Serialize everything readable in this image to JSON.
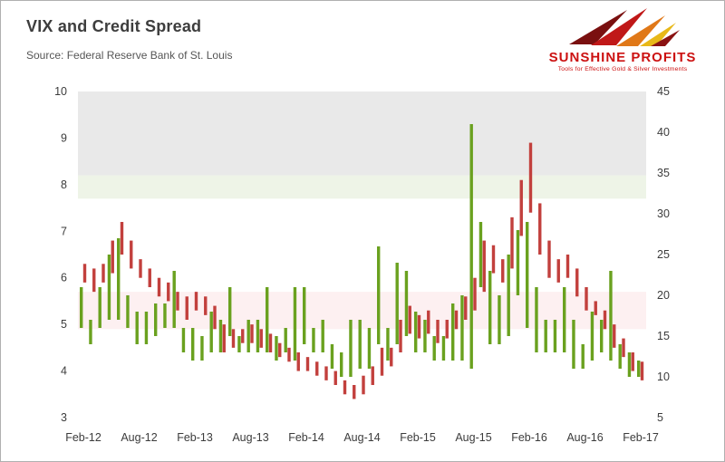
{
  "header": {
    "title": "VIX and Credit Spread",
    "source": "Source: Federal Reserve Bank of St. Louis"
  },
  "logo": {
    "name": "SUNSHINE PROFITS",
    "tagline": "Tools for Effective Gold & Silver Investments"
  },
  "chart_data": {
    "type": "bar",
    "subtype": "high-low range bars, dual axis",
    "title": "VIX and Credit Spread",
    "xlabel": "",
    "ylabel_left": "",
    "ylabel_right": "",
    "left_axis": {
      "min": 3,
      "max": 10,
      "ticks": [
        3,
        4,
        5,
        6,
        7,
        8,
        9,
        10
      ]
    },
    "right_axis": {
      "min": 5,
      "max": 45,
      "ticks": [
        5,
        10,
        15,
        20,
        25,
        30,
        35,
        40,
        45
      ]
    },
    "x_ticks": [
      {
        "label": "Feb-12",
        "month": 0
      },
      {
        "label": "Aug-12",
        "month": 6
      },
      {
        "label": "Feb-13",
        "month": 12
      },
      {
        "label": "Aug-13",
        "month": 18
      },
      {
        "label": "Feb-14",
        "month": 24
      },
      {
        "label": "Aug-14",
        "month": 30
      },
      {
        "label": "Feb-15",
        "month": 36
      },
      {
        "label": "Aug-15",
        "month": 42
      },
      {
        "label": "Feb-16",
        "month": 48
      },
      {
        "label": "Aug-16",
        "month": 54
      },
      {
        "label": "Feb-17",
        "month": 60
      }
    ],
    "n_months": 61,
    "bands": [
      {
        "axis": "left",
        "from": 8.2,
        "to": 10.0,
        "color": "#e9e9e9"
      },
      {
        "axis": "left",
        "from": 7.7,
        "to": 8.2,
        "color": "#eef4e7"
      },
      {
        "axis": "left",
        "from": 4.9,
        "to": 5.7,
        "color": "#fdf0f1"
      }
    ],
    "series": [
      {
        "name": "VIX (right axis)",
        "color": "#6aa11f",
        "axis": "right",
        "ranges": [
          [
            16,
            21
          ],
          [
            14,
            17
          ],
          [
            16,
            21
          ],
          [
            17,
            25
          ],
          [
            17,
            27
          ],
          [
            16,
            20
          ],
          [
            14,
            18
          ],
          [
            14,
            18
          ],
          [
            15,
            19
          ],
          [
            16,
            19
          ],
          [
            16,
            23
          ],
          [
            13,
            16
          ],
          [
            12,
            16
          ],
          [
            12,
            15
          ],
          [
            13,
            18
          ],
          [
            13,
            17
          ],
          [
            15,
            21
          ],
          [
            13,
            15
          ],
          [
            13,
            17
          ],
          [
            13,
            17
          ],
          [
            13,
            21
          ],
          [
            12,
            15
          ],
          [
            13,
            16
          ],
          [
            12,
            21
          ],
          [
            14,
            21
          ],
          [
            13,
            16
          ],
          [
            13,
            17
          ],
          [
            11,
            14
          ],
          [
            10,
            13
          ],
          [
            10,
            17
          ],
          [
            11,
            17
          ],
          [
            11,
            16
          ],
          [
            14,
            26
          ],
          [
            12,
            16
          ],
          [
            14,
            24
          ],
          [
            15,
            23
          ],
          [
            13,
            18
          ],
          [
            13,
            17
          ],
          [
            12,
            15
          ],
          [
            12,
            15
          ],
          [
            12,
            19
          ],
          [
            12,
            20
          ],
          [
            11,
            41
          ],
          [
            21,
            29
          ],
          [
            14,
            23
          ],
          [
            14,
            20
          ],
          [
            15,
            25
          ],
          [
            20,
            28
          ],
          [
            16,
            29
          ],
          [
            13,
            21
          ],
          [
            13,
            17
          ],
          [
            13,
            17
          ],
          [
            13,
            21
          ],
          [
            11,
            17
          ],
          [
            11,
            14
          ],
          [
            12,
            18
          ],
          [
            13,
            17
          ],
          [
            12,
            23
          ],
          [
            11,
            14
          ],
          [
            10,
            13
          ],
          [
            10,
            12
          ]
        ]
      },
      {
        "name": "Credit Spread (left axis)",
        "color": "#c2403d",
        "axis": "left",
        "ranges": [
          [
            5.9,
            6.3
          ],
          [
            5.7,
            6.2
          ],
          [
            5.9,
            6.3
          ],
          [
            6.1,
            6.8
          ],
          [
            6.5,
            7.2
          ],
          [
            6.2,
            6.8
          ],
          [
            6.0,
            6.4
          ],
          [
            5.8,
            6.2
          ],
          [
            5.6,
            6.0
          ],
          [
            5.5,
            5.9
          ],
          [
            5.3,
            5.7
          ],
          [
            5.1,
            5.6
          ],
          [
            5.3,
            5.7
          ],
          [
            5.2,
            5.6
          ],
          [
            4.9,
            5.4
          ],
          [
            4.4,
            5.0
          ],
          [
            4.5,
            4.9
          ],
          [
            4.6,
            4.9
          ],
          [
            4.6,
            5.0
          ],
          [
            4.5,
            4.9
          ],
          [
            4.4,
            4.8
          ],
          [
            4.3,
            4.6
          ],
          [
            4.2,
            4.5
          ],
          [
            4.0,
            4.4
          ],
          [
            4.0,
            4.3
          ],
          [
            3.9,
            4.2
          ],
          [
            3.8,
            4.1
          ],
          [
            3.7,
            4.0
          ],
          [
            3.5,
            3.8
          ],
          [
            3.4,
            3.7
          ],
          [
            3.5,
            3.9
          ],
          [
            3.7,
            4.1
          ],
          [
            3.9,
            4.5
          ],
          [
            4.1,
            4.5
          ],
          [
            4.4,
            5.1
          ],
          [
            4.8,
            5.4
          ],
          [
            4.7,
            5.2
          ],
          [
            4.8,
            5.3
          ],
          [
            4.6,
            5.1
          ],
          [
            4.7,
            5.1
          ],
          [
            4.9,
            5.3
          ],
          [
            5.1,
            5.6
          ],
          [
            5.3,
            6.0
          ],
          [
            5.7,
            6.8
          ],
          [
            6.1,
            6.7
          ],
          [
            5.9,
            6.4
          ],
          [
            6.2,
            7.3
          ],
          [
            6.9,
            8.1
          ],
          [
            7.4,
            8.9
          ],
          [
            6.5,
            7.6
          ],
          [
            6.0,
            6.8
          ],
          [
            5.9,
            6.4
          ],
          [
            6.0,
            6.5
          ],
          [
            5.6,
            6.2
          ],
          [
            5.3,
            5.8
          ],
          [
            5.2,
            5.5
          ],
          [
            4.9,
            5.3
          ],
          [
            4.5,
            5.0
          ],
          [
            4.3,
            4.7
          ],
          [
            4.0,
            4.4
          ],
          [
            3.8,
            4.2
          ]
        ]
      }
    ]
  }
}
